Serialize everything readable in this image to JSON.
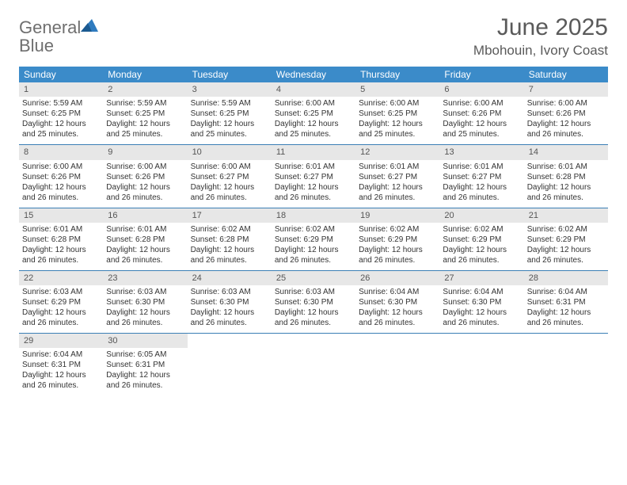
{
  "brand": {
    "word1": "General",
    "word2": "Blue"
  },
  "title": "June 2025",
  "location": "Mbohouin, Ivory Coast",
  "colors": {
    "header_bg": "#3b8bc9",
    "daynum_bg": "#e7e7e7",
    "rule": "#3b7fb5",
    "logo_gray": "#6f6f6f",
    "logo_blue": "#2f7bbf",
    "title_gray": "#5a5a5a"
  },
  "dow": [
    "Sunday",
    "Monday",
    "Tuesday",
    "Wednesday",
    "Thursday",
    "Friday",
    "Saturday"
  ],
  "weeks": [
    [
      {
        "n": "1",
        "sr": "5:59 AM",
        "ss": "6:25 PM",
        "dl": "12 hours and 25 minutes."
      },
      {
        "n": "2",
        "sr": "5:59 AM",
        "ss": "6:25 PM",
        "dl": "12 hours and 25 minutes."
      },
      {
        "n": "3",
        "sr": "5:59 AM",
        "ss": "6:25 PM",
        "dl": "12 hours and 25 minutes."
      },
      {
        "n": "4",
        "sr": "6:00 AM",
        "ss": "6:25 PM",
        "dl": "12 hours and 25 minutes."
      },
      {
        "n": "5",
        "sr": "6:00 AM",
        "ss": "6:25 PM",
        "dl": "12 hours and 25 minutes."
      },
      {
        "n": "6",
        "sr": "6:00 AM",
        "ss": "6:26 PM",
        "dl": "12 hours and 25 minutes."
      },
      {
        "n": "7",
        "sr": "6:00 AM",
        "ss": "6:26 PM",
        "dl": "12 hours and 26 minutes."
      }
    ],
    [
      {
        "n": "8",
        "sr": "6:00 AM",
        "ss": "6:26 PM",
        "dl": "12 hours and 26 minutes."
      },
      {
        "n": "9",
        "sr": "6:00 AM",
        "ss": "6:26 PM",
        "dl": "12 hours and 26 minutes."
      },
      {
        "n": "10",
        "sr": "6:00 AM",
        "ss": "6:27 PM",
        "dl": "12 hours and 26 minutes."
      },
      {
        "n": "11",
        "sr": "6:01 AM",
        "ss": "6:27 PM",
        "dl": "12 hours and 26 minutes."
      },
      {
        "n": "12",
        "sr": "6:01 AM",
        "ss": "6:27 PM",
        "dl": "12 hours and 26 minutes."
      },
      {
        "n": "13",
        "sr": "6:01 AM",
        "ss": "6:27 PM",
        "dl": "12 hours and 26 minutes."
      },
      {
        "n": "14",
        "sr": "6:01 AM",
        "ss": "6:28 PM",
        "dl": "12 hours and 26 minutes."
      }
    ],
    [
      {
        "n": "15",
        "sr": "6:01 AM",
        "ss": "6:28 PM",
        "dl": "12 hours and 26 minutes."
      },
      {
        "n": "16",
        "sr": "6:01 AM",
        "ss": "6:28 PM",
        "dl": "12 hours and 26 minutes."
      },
      {
        "n": "17",
        "sr": "6:02 AM",
        "ss": "6:28 PM",
        "dl": "12 hours and 26 minutes."
      },
      {
        "n": "18",
        "sr": "6:02 AM",
        "ss": "6:29 PM",
        "dl": "12 hours and 26 minutes."
      },
      {
        "n": "19",
        "sr": "6:02 AM",
        "ss": "6:29 PM",
        "dl": "12 hours and 26 minutes."
      },
      {
        "n": "20",
        "sr": "6:02 AM",
        "ss": "6:29 PM",
        "dl": "12 hours and 26 minutes."
      },
      {
        "n": "21",
        "sr": "6:02 AM",
        "ss": "6:29 PM",
        "dl": "12 hours and 26 minutes."
      }
    ],
    [
      {
        "n": "22",
        "sr": "6:03 AM",
        "ss": "6:29 PM",
        "dl": "12 hours and 26 minutes."
      },
      {
        "n": "23",
        "sr": "6:03 AM",
        "ss": "6:30 PM",
        "dl": "12 hours and 26 minutes."
      },
      {
        "n": "24",
        "sr": "6:03 AM",
        "ss": "6:30 PM",
        "dl": "12 hours and 26 minutes."
      },
      {
        "n": "25",
        "sr": "6:03 AM",
        "ss": "6:30 PM",
        "dl": "12 hours and 26 minutes."
      },
      {
        "n": "26",
        "sr": "6:04 AM",
        "ss": "6:30 PM",
        "dl": "12 hours and 26 minutes."
      },
      {
        "n": "27",
        "sr": "6:04 AM",
        "ss": "6:30 PM",
        "dl": "12 hours and 26 minutes."
      },
      {
        "n": "28",
        "sr": "6:04 AM",
        "ss": "6:31 PM",
        "dl": "12 hours and 26 minutes."
      }
    ],
    [
      {
        "n": "29",
        "sr": "6:04 AM",
        "ss": "6:31 PM",
        "dl": "12 hours and 26 minutes."
      },
      {
        "n": "30",
        "sr": "6:05 AM",
        "ss": "6:31 PM",
        "dl": "12 hours and 26 minutes."
      },
      null,
      null,
      null,
      null,
      null
    ]
  ],
  "labels": {
    "sunrise": "Sunrise:",
    "sunset": "Sunset:",
    "daylight": "Daylight:"
  }
}
